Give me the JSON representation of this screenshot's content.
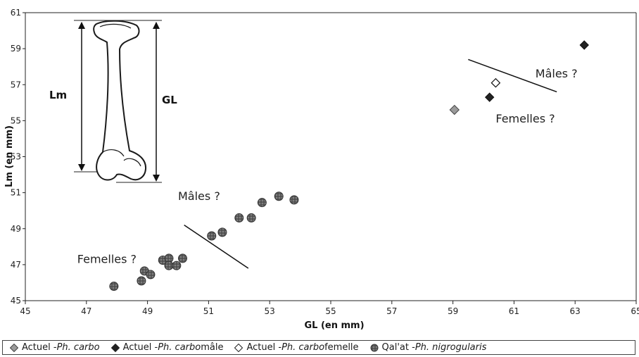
{
  "chart_data": {
    "type": "scatter",
    "xlabel": "GL (en mm)",
    "ylabel": "Lm (en mm)",
    "xlim": [
      45,
      65
    ],
    "ylim": [
      45,
      61
    ],
    "xticks": [
      45,
      47,
      49,
      51,
      53,
      55,
      57,
      59,
      61,
      63,
      65
    ],
    "yticks": [
      45,
      47,
      49,
      51,
      53,
      55,
      57,
      59,
      61
    ],
    "grid": false,
    "legend_position": "bottom",
    "series": [
      {
        "name": "Actuel - Ph. carbo",
        "name_prefix": "Actuel - ",
        "name_italic": "Ph. carbo",
        "name_suffix": "",
        "marker": "diamond-gray",
        "color": "#9a9a9a",
        "points": [
          [
            59.05,
            55.6
          ]
        ]
      },
      {
        "name": "Actuel - Ph. carbo mâle",
        "name_prefix": "Actuel - ",
        "name_italic": "Ph. carbo",
        "name_suffix": " mâle",
        "marker": "diamond-black",
        "color": "#222222",
        "points": [
          [
            63.3,
            59.2
          ],
          [
            60.2,
            56.3
          ]
        ]
      },
      {
        "name": "Actuel - Ph. carbo femelle",
        "name_prefix": "Actuel - ",
        "name_italic": "Ph. carbo",
        "name_suffix": " femelle",
        "marker": "diamond-white",
        "color": "#ffffff",
        "points": [
          [
            60.4,
            57.1
          ]
        ]
      },
      {
        "name": "Qal'at - Ph. nigrogularis",
        "name_prefix": "Qal'at - ",
        "name_italic": "Ph. nigrogularis",
        "name_suffix": "",
        "marker": "circle-textured",
        "color": "#6a6a6a",
        "points": [
          [
            47.9,
            45.8
          ],
          [
            48.8,
            46.1
          ],
          [
            48.9,
            46.65
          ],
          [
            49.1,
            46.45
          ],
          [
            49.5,
            47.25
          ],
          [
            49.7,
            47.35
          ],
          [
            49.7,
            46.95
          ],
          [
            49.95,
            46.95
          ],
          [
            50.15,
            47.35
          ],
          [
            51.1,
            48.6
          ],
          [
            51.45,
            48.8
          ],
          [
            52.0,
            49.6
          ],
          [
            52.4,
            49.6
          ],
          [
            52.75,
            50.45
          ],
          [
            53.3,
            50.8
          ],
          [
            53.8,
            50.6
          ]
        ]
      }
    ],
    "annotations": [
      {
        "text": "Mâles ?",
        "x": 50.0,
        "y": 50.6
      },
      {
        "text": "Femelles ?",
        "x": 46.7,
        "y": 47.1
      },
      {
        "text": "Mâles ?",
        "x": 61.7,
        "y": 57.4
      },
      {
        "text": "Femelles ?",
        "x": 60.4,
        "y": 54.9
      }
    ],
    "separator_lines": [
      {
        "from": [
          50.2,
          49.2
        ],
        "to": [
          52.3,
          46.8
        ]
      },
      {
        "from": [
          59.5,
          58.4
        ],
        "to": [
          62.4,
          56.6
        ]
      }
    ],
    "inset": {
      "label_left": "Lm",
      "label_right": "GL"
    }
  }
}
